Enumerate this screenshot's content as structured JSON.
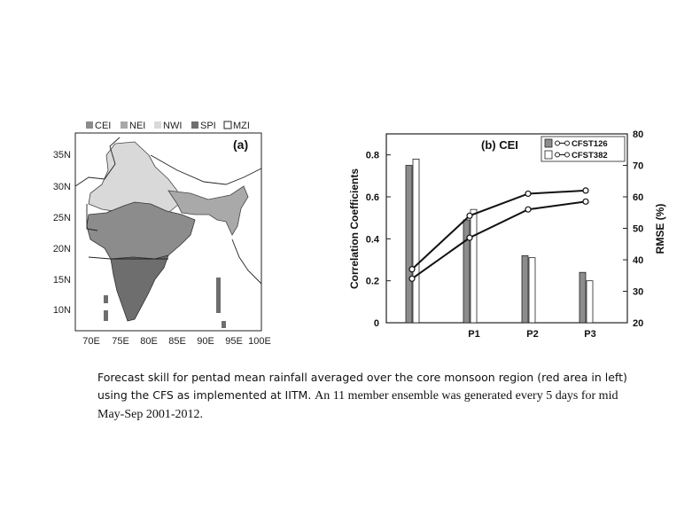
{
  "map": {
    "legend": [
      {
        "label": "CEI",
        "color": "#8c8c8c"
      },
      {
        "label": "NEI",
        "color": "#a9a9a9"
      },
      {
        "label": "NWI",
        "color": "#d9d9d9"
      },
      {
        "label": "SPI",
        "color": "#6e6e6e"
      },
      {
        "label": "MZI",
        "color": "#ffffff"
      }
    ],
    "panel_label": "(a)",
    "lat_labels": [
      "35N",
      "30N",
      "25N",
      "20N",
      "15N",
      "10N"
    ],
    "lon_labels": [
      "70E",
      "75E",
      "80E",
      "85E",
      "90E",
      "95E",
      "100E"
    ]
  },
  "chart_data": {
    "type": "bar",
    "title": "(b) CEI",
    "categories": [
      "",
      "P1",
      "P2",
      "P3"
    ],
    "ylabel": "Correlation Coefficients",
    "y2label": "RMSE (%)",
    "ylim": [
      0,
      0.9
    ],
    "y2lim": [
      20,
      80
    ],
    "yticks": [
      "0",
      "0.2",
      "0.4",
      "0.6",
      "0.8"
    ],
    "y2ticks": [
      "20",
      "30",
      "40",
      "50",
      "60",
      "70",
      "80"
    ],
    "series": [
      {
        "name": "CFST126",
        "type": "bar",
        "values": [
          0.75,
          0.49,
          0.32,
          0.24
        ],
        "color": "#8c8c8c"
      },
      {
        "name": "CFST382",
        "type": "bar",
        "values": [
          0.78,
          0.54,
          0.31,
          0.2
        ],
        "color": "#ffffff"
      },
      {
        "name": "CFST126",
        "type": "line",
        "axis": "right",
        "values": [
          37,
          54,
          61,
          62
        ]
      },
      {
        "name": "CFST382",
        "type": "line",
        "axis": "right",
        "values": [
          34,
          47,
          56,
          58.5
        ]
      }
    ]
  },
  "caption": {
    "part_a": "Forecast skill for pentad mean rainfall averaged over the core monsoon region (red area in left) using the CFS as implemented at IITM.",
    "part_b": "An 11 member ensemble was generated every 5 days for mid May-Sep 2001-2012."
  }
}
